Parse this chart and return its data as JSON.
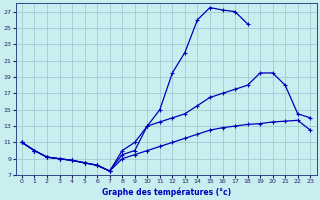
{
  "title": "Graphe des températures (°c)",
  "bg_color": "#c8eef0",
  "grid_color": "#a0cdd0",
  "line_color": "#0000bb",
  "xlim": [
    -0.5,
    23.5
  ],
  "ylim": [
    7,
    28
  ],
  "xticks": [
    0,
    1,
    2,
    3,
    4,
    5,
    6,
    7,
    8,
    9,
    10,
    11,
    12,
    13,
    14,
    15,
    16,
    17,
    18,
    19,
    20,
    21,
    22,
    23
  ],
  "yticks": [
    7,
    9,
    11,
    13,
    15,
    17,
    19,
    21,
    23,
    25,
    27
  ],
  "line_top_x": [
    0,
    1,
    2,
    3,
    4,
    5,
    6,
    7,
    8,
    9,
    10,
    11,
    12,
    13,
    14,
    15,
    16,
    17,
    18
  ],
  "line_top_y": [
    11,
    10,
    9.2,
    9.0,
    8.8,
    8.5,
    8.2,
    7.5,
    10,
    11,
    13,
    15,
    19.5,
    22,
    26,
    27.5,
    27.2,
    27.0,
    25.5
  ],
  "line_mid_x": [
    0,
    1,
    2,
    3,
    4,
    5,
    6,
    7,
    8,
    9,
    10,
    11,
    12,
    13,
    14,
    15,
    16,
    17,
    18,
    19,
    20,
    21,
    22,
    23
  ],
  "line_mid_y": [
    11,
    10,
    9.2,
    9.0,
    8.8,
    8.5,
    8.2,
    7.5,
    9.5,
    10,
    13,
    13.5,
    14,
    14.5,
    15.5,
    16.5,
    17.0,
    17.5,
    18.0,
    19.5,
    19.5,
    18.0,
    14.5,
    14.0
  ],
  "line_bot_x": [
    0,
    1,
    2,
    3,
    4,
    5,
    6,
    7,
    8,
    9,
    10,
    11,
    12,
    13,
    14,
    15,
    16,
    17,
    18,
    19,
    20,
    21,
    22,
    23
  ],
  "line_bot_y": [
    11,
    10,
    9.2,
    9.0,
    8.8,
    8.5,
    8.2,
    7.5,
    9.0,
    9.5,
    10.0,
    10.5,
    11.0,
    11.5,
    12.0,
    12.5,
    12.8,
    13.0,
    13.2,
    13.3,
    13.5,
    13.6,
    13.7,
    12.5
  ]
}
